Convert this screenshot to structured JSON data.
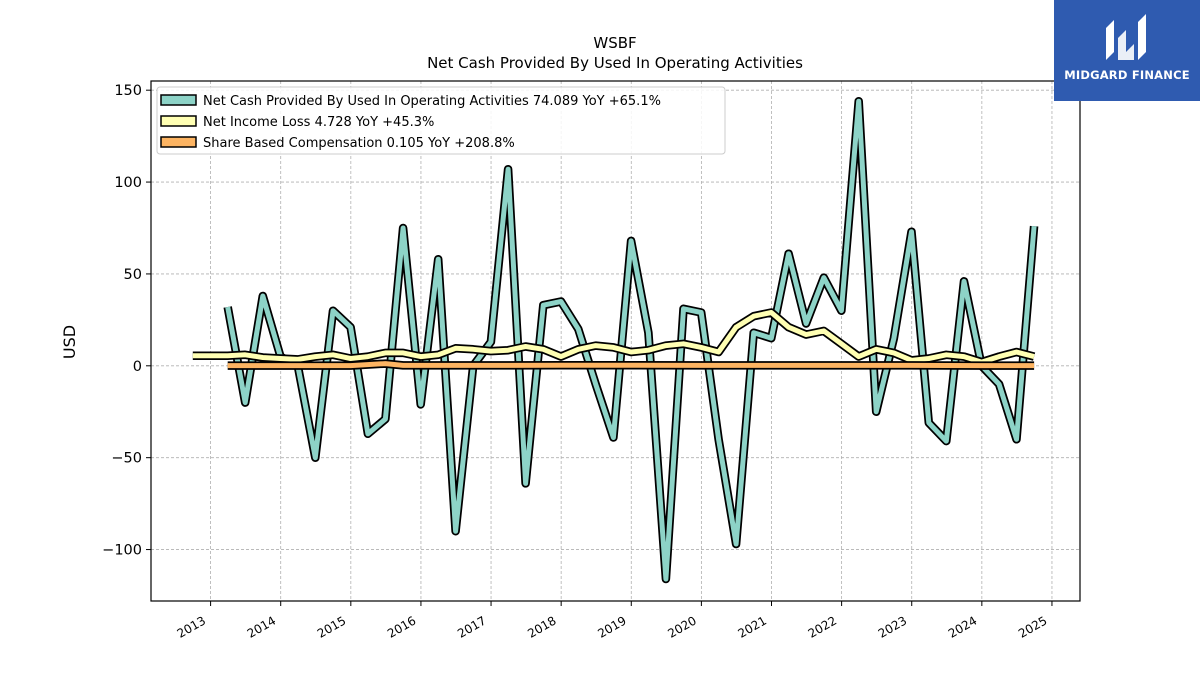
{
  "logo": {
    "text": "MIDGARD FINANCE"
  },
  "chart_data": {
    "type": "line",
    "title": "WSBF",
    "subtitle": "Net Cash Provided By Used In Operating Activities",
    "ylabel": "USD",
    "xlabel": "",
    "ylim": [
      -128,
      155
    ],
    "xlim": [
      2012.15,
      2025.4
    ],
    "yticks": [
      -100,
      -50,
      0,
      50,
      100,
      150
    ],
    "ytick_labels": [
      "−100",
      "−50",
      "0",
      "50",
      "100",
      "150"
    ],
    "xticks": [
      2013,
      2014,
      2015,
      2016,
      2017,
      2018,
      2019,
      2020,
      2021,
      2022,
      2023,
      2024,
      2025
    ],
    "xtick_labels": [
      "2013",
      "2014",
      "2015",
      "2016",
      "2017",
      "2018",
      "2019",
      "2020",
      "2021",
      "2022",
      "2023",
      "2024",
      "2025"
    ],
    "grid": true,
    "legend_position": "top-left",
    "series": [
      {
        "name": "Net Cash Provided By Used In Operating Activities",
        "legend_label": "Net Cash Provided By Used In Operating Activities  74.089 YoY +65.1%",
        "color": "#8dd3c7",
        "width": 5,
        "points": [
          [
            "2013-03-31",
            32
          ],
          [
            "2013-06-30",
            -20
          ],
          [
            "2013-09-30",
            38
          ],
          [
            "2013-12-31",
            5
          ],
          [
            "2014-03-31",
            0
          ],
          [
            "2014-06-30",
            -50
          ],
          [
            "2014-09-30",
            30
          ],
          [
            "2014-12-31",
            21
          ],
          [
            "2015-03-31",
            -37
          ],
          [
            "2015-06-30",
            -29
          ],
          [
            "2015-09-30",
            75
          ],
          [
            "2015-12-31",
            -21
          ],
          [
            "2016-03-31",
            58
          ],
          [
            "2016-06-30",
            -90
          ],
          [
            "2016-09-30",
            0
          ],
          [
            "2016-12-31",
            13
          ],
          [
            "2017-03-31",
            107
          ],
          [
            "2017-06-30",
            -64
          ],
          [
            "2017-09-30",
            33
          ],
          [
            "2017-12-31",
            35
          ],
          [
            "2018-03-31",
            20
          ],
          [
            "2018-06-30",
            -10
          ],
          [
            "2018-09-30",
            -39
          ],
          [
            "2018-12-31",
            68
          ],
          [
            "2019-03-31",
            18
          ],
          [
            "2019-06-30",
            -116
          ],
          [
            "2019-09-30",
            31
          ],
          [
            "2019-12-31",
            29
          ],
          [
            "2020-03-31",
            -40
          ],
          [
            "2020-06-30",
            -97
          ],
          [
            "2020-09-30",
            18
          ],
          [
            "2020-12-31",
            15
          ],
          [
            "2021-03-31",
            61
          ],
          [
            "2021-06-30",
            23
          ],
          [
            "2021-09-30",
            48
          ],
          [
            "2021-12-31",
            30
          ],
          [
            "2022-03-31",
            144
          ],
          [
            "2022-06-30",
            -25
          ],
          [
            "2022-09-30",
            15
          ],
          [
            "2022-12-31",
            73
          ],
          [
            "2023-03-31",
            -31
          ],
          [
            "2023-06-30",
            -41
          ],
          [
            "2023-09-30",
            46
          ],
          [
            "2023-12-31",
            0
          ],
          [
            "2024-03-31",
            -10
          ],
          [
            "2024-06-30",
            -40
          ],
          [
            "2024-09-30",
            76
          ]
        ]
      },
      {
        "name": "Net Income Loss",
        "legend_label": "Net Income Loss  4.728 YoY +45.3%",
        "color": "#ffffb3",
        "width": 5,
        "points": [
          [
            "2012-09-30",
            5.5
          ],
          [
            "2012-12-31",
            5.5
          ],
          [
            "2013-03-31",
            5.5
          ],
          [
            "2013-06-30",
            6
          ],
          [
            "2013-09-30",
            4.5
          ],
          [
            "2013-12-31",
            4
          ],
          [
            "2014-03-31",
            3.5
          ],
          [
            "2014-06-30",
            5
          ],
          [
            "2014-09-30",
            6
          ],
          [
            "2014-12-31",
            4
          ],
          [
            "2015-03-31",
            5
          ],
          [
            "2015-06-30",
            7
          ],
          [
            "2015-09-30",
            7
          ],
          [
            "2015-12-31",
            5
          ],
          [
            "2016-03-31",
            6
          ],
          [
            "2016-06-30",
            9.5
          ],
          [
            "2016-09-30",
            9
          ],
          [
            "2016-12-31",
            8
          ],
          [
            "2017-03-31",
            8.5
          ],
          [
            "2017-06-30",
            10.5
          ],
          [
            "2017-09-30",
            9
          ],
          [
            "2017-12-31",
            5
          ],
          [
            "2018-03-31",
            9
          ],
          [
            "2018-06-30",
            11
          ],
          [
            "2018-09-30",
            10
          ],
          [
            "2018-12-31",
            7.5
          ],
          [
            "2019-03-31",
            8.5
          ],
          [
            "2019-06-30",
            11
          ],
          [
            "2019-09-30",
            12
          ],
          [
            "2019-12-31",
            10
          ],
          [
            "2020-03-31",
            7.5
          ],
          [
            "2020-06-30",
            21
          ],
          [
            "2020-09-30",
            27
          ],
          [
            "2020-12-31",
            29
          ],
          [
            "2021-03-31",
            21
          ],
          [
            "2021-06-30",
            17
          ],
          [
            "2021-09-30",
            19
          ],
          [
            "2021-12-31",
            12
          ],
          [
            "2022-03-31",
            5
          ],
          [
            "2022-06-30",
            9
          ],
          [
            "2022-09-30",
            7
          ],
          [
            "2022-12-31",
            3
          ],
          [
            "2023-03-31",
            4
          ],
          [
            "2023-06-30",
            6
          ],
          [
            "2023-09-30",
            5
          ],
          [
            "2023-12-31",
            2
          ],
          [
            "2024-03-31",
            5
          ],
          [
            "2024-06-30",
            7.5
          ],
          [
            "2024-09-30",
            5
          ]
        ]
      },
      {
        "name": "Share Based Compensation",
        "legend_label": "Share Based Compensation  0.105 YoY +208.8%",
        "color": "#fdb462",
        "width": 5,
        "points": [
          [
            "2013-03-31",
            0.1
          ],
          [
            "2013-12-31",
            0.1
          ],
          [
            "2014-12-31",
            0.1
          ],
          [
            "2015-06-30",
            1.2
          ],
          [
            "2015-09-30",
            0.2
          ],
          [
            "2016-12-31",
            0.2
          ],
          [
            "2017-12-31",
            0.3
          ],
          [
            "2018-12-31",
            0.3
          ],
          [
            "2019-12-31",
            0.2
          ],
          [
            "2020-12-31",
            0.2
          ],
          [
            "2021-12-31",
            0.2
          ],
          [
            "2022-12-31",
            0.2
          ],
          [
            "2023-12-31",
            0.1
          ],
          [
            "2024-09-30",
            0.1
          ]
        ]
      }
    ]
  }
}
